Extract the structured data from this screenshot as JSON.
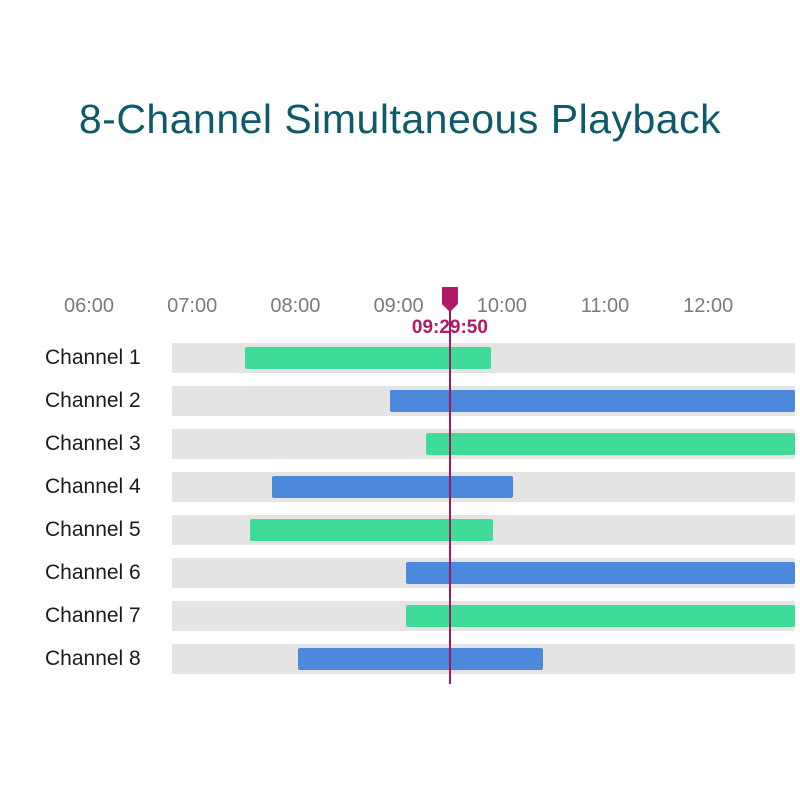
{
  "title": {
    "text": "8-Channel Simultaneous Playback"
  },
  "chart_data": {
    "type": "bar",
    "subtype": "gantt-timeline-playback",
    "title": "8-Channel Simultaneous Playback",
    "x_axis": {
      "tick_labels": [
        "06:00",
        "07:00",
        "08:00",
        "09:00",
        "10:00",
        "11:00",
        "12:00"
      ],
      "tick_hours": [
        6,
        7,
        8,
        9,
        10,
        11,
        12
      ],
      "visible_end_hour": 12.84,
      "grid": false
    },
    "playhead": {
      "time_label": "09:29:50",
      "hour": 9.4972
    },
    "channels": [
      {
        "name": "Channel 1",
        "color": "green",
        "start_time": "07:30",
        "end_time": "09:55",
        "start_hour": 7.51,
        "end_hour": 9.9,
        "continues_past_view": false
      },
      {
        "name": "Channel 2",
        "color": "blue",
        "start_time": "08:55",
        "end_time": null,
        "start_hour": 8.92,
        "end_hour": null,
        "continues_past_view": true
      },
      {
        "name": "Channel 3",
        "color": "green",
        "start_time": "09:15",
        "end_time": null,
        "start_hour": 9.27,
        "end_hour": null,
        "continues_past_view": true
      },
      {
        "name": "Channel 4",
        "color": "blue",
        "start_time": "07:45",
        "end_time": "10:05",
        "start_hour": 7.77,
        "end_hour": 10.11,
        "continues_past_view": false
      },
      {
        "name": "Channel 5",
        "color": "green",
        "start_time": "07:35",
        "end_time": "09:55",
        "start_hour": 7.56,
        "end_hour": 9.91,
        "continues_past_view": false
      },
      {
        "name": "Channel 6",
        "color": "blue",
        "start_time": "09:05",
        "end_time": null,
        "start_hour": 9.07,
        "end_hour": null,
        "continues_past_view": true
      },
      {
        "name": "Channel 7",
        "color": "green",
        "start_time": "09:05",
        "end_time": null,
        "start_hour": 9.07,
        "end_hour": null,
        "continues_past_view": true
      },
      {
        "name": "Channel 8",
        "color": "blue",
        "start_time": "08:00",
        "end_time": "10:25",
        "start_hour": 8.03,
        "end_hour": 10.4,
        "continues_past_view": false
      }
    ],
    "colors": {
      "recording_green": "#3edc98",
      "recording_blue": "#4c89dc",
      "track_gray": "#e4e4e4",
      "playhead": "#b01a64",
      "playhead_line": "#9c1b60",
      "axis_label": "#7b7b7b",
      "channel_label": "#1b1b1b",
      "title": "#0e5a68"
    }
  }
}
